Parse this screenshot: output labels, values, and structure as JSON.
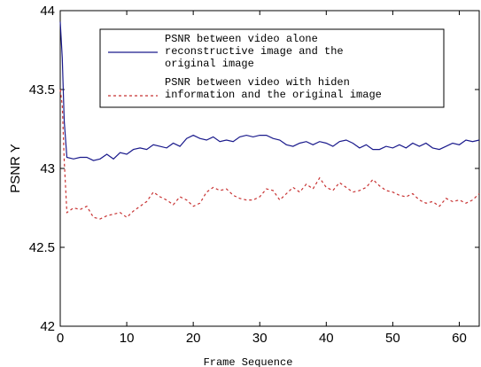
{
  "chart_data": {
    "type": "line",
    "title": "",
    "xlabel": "Frame Sequence",
    "ylabel": "PSNR Y",
    "xlim": [
      0,
      63
    ],
    "ylim": [
      42,
      44
    ],
    "xticks": [
      "0",
      "10",
      "20",
      "30",
      "40",
      "50",
      "60"
    ],
    "yticks": [
      "42",
      "42.5",
      "43",
      "43.5",
      "44"
    ],
    "grid": false,
    "legend_position": "top",
    "series": [
      {
        "name_lines": [
          "PSNR between video alone",
          "reconstructive image and the",
          "original image"
        ],
        "style": "solid",
        "color": "#1a1a8c",
        "x": [
          0,
          0.3,
          0.6,
          1,
          2,
          3,
          4,
          5,
          6,
          7,
          8,
          9,
          10,
          11,
          12,
          13,
          14,
          15,
          16,
          17,
          18,
          19,
          20,
          21,
          22,
          23,
          24,
          25,
          26,
          27,
          28,
          29,
          30,
          31,
          32,
          33,
          34,
          35,
          36,
          37,
          38,
          39,
          40,
          41,
          42,
          43,
          44,
          45,
          46,
          47,
          48,
          49,
          50,
          51,
          52,
          53,
          54,
          55,
          56,
          57,
          58,
          59,
          60,
          61,
          62,
          63
        ],
        "y": [
          43.93,
          43.7,
          43.3,
          43.07,
          43.06,
          43.07,
          43.07,
          43.05,
          43.06,
          43.09,
          43.06,
          43.1,
          43.09,
          43.12,
          43.13,
          43.12,
          43.15,
          43.14,
          43.13,
          43.16,
          43.14,
          43.19,
          43.21,
          43.19,
          43.18,
          43.2,
          43.17,
          43.18,
          43.17,
          43.2,
          43.21,
          43.2,
          43.21,
          43.21,
          43.19,
          43.18,
          43.15,
          43.14,
          43.16,
          43.17,
          43.15,
          43.17,
          43.16,
          43.14,
          43.17,
          43.18,
          43.16,
          43.13,
          43.15,
          43.12,
          43.12,
          43.14,
          43.13,
          43.15,
          43.13,
          43.16,
          43.14,
          43.16,
          43.13,
          43.12,
          43.14,
          43.16,
          43.15,
          43.18,
          43.17,
          43.18
        ]
      },
      {
        "name_lines": [
          "PSNR between video with hiden",
          "information and the original image"
        ],
        "style": "dashed",
        "color": "#c83232",
        "x": [
          0,
          0.3,
          0.6,
          1,
          2,
          3,
          4,
          5,
          6,
          7,
          8,
          9,
          10,
          11,
          12,
          13,
          14,
          15,
          16,
          17,
          18,
          19,
          20,
          21,
          22,
          23,
          24,
          25,
          26,
          27,
          28,
          29,
          30,
          31,
          32,
          33,
          34,
          35,
          36,
          37,
          38,
          39,
          40,
          41,
          42,
          43,
          44,
          45,
          46,
          47,
          48,
          49,
          50,
          51,
          52,
          53,
          54,
          55,
          56,
          57,
          58,
          59,
          60,
          61,
          62,
          63
        ],
        "y": [
          43.5,
          43.4,
          43.05,
          42.72,
          42.75,
          42.74,
          42.76,
          42.69,
          42.68,
          42.7,
          42.71,
          42.72,
          42.69,
          42.73,
          42.76,
          42.79,
          42.85,
          42.82,
          42.8,
          42.77,
          42.82,
          42.8,
          42.76,
          42.78,
          42.85,
          42.88,
          42.86,
          42.87,
          42.83,
          42.81,
          42.8,
          42.8,
          42.82,
          42.87,
          42.86,
          42.8,
          42.84,
          42.88,
          42.85,
          42.9,
          42.87,
          42.94,
          42.88,
          42.86,
          42.91,
          42.88,
          42.85,
          42.86,
          42.88,
          42.93,
          42.89,
          42.86,
          42.85,
          42.83,
          42.82,
          42.84,
          42.8,
          42.78,
          42.79,
          42.76,
          42.81,
          42.79,
          42.8,
          42.78,
          42.8,
          42.84
        ]
      }
    ]
  }
}
